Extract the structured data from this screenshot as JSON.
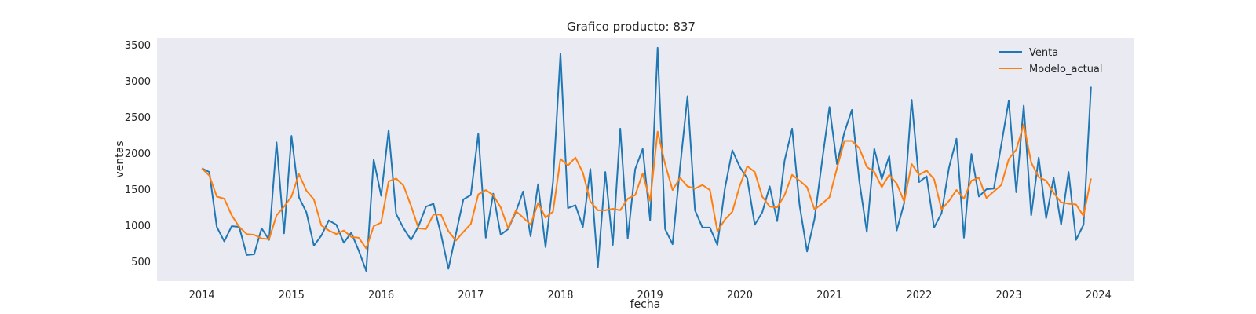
{
  "chart_data": {
    "type": "line",
    "title": "Grafico producto: 837",
    "xlabel": "fecha",
    "ylabel": "ventas",
    "xlim": [
      2013.5,
      2024.4
    ],
    "ylim": [
      230,
      3600
    ],
    "x_ticks": [
      2014,
      2015,
      2016,
      2017,
      2018,
      2019,
      2020,
      2021,
      2022,
      2023,
      2024
    ],
    "y_ticks": [
      500,
      1000,
      1500,
      2000,
      2500,
      3000,
      3500
    ],
    "grid": false,
    "legend": "top-right",
    "x_start": "2014-01",
    "x_step": "month",
    "series": [
      {
        "name": "Venta",
        "color": "#1f77b4",
        "values": [
          1790,
          1740,
          980,
          780,
          990,
          980,
          590,
          600,
          960,
          800,
          2150,
          890,
          2240,
          1390,
          1180,
          720,
          860,
          1070,
          1010,
          760,
          900,
          650,
          370,
          1910,
          1410,
          2320,
          1160,
          960,
          800,
          990,
          1260,
          1300,
          880,
          400,
          880,
          1360,
          1420,
          2270,
          830,
          1440,
          870,
          950,
          1180,
          1470,
          850,
          1570,
          700,
          1600,
          3380,
          1240,
          1280,
          980,
          1780,
          420,
          1740,
          730,
          2340,
          820,
          1780,
          2060,
          1070,
          3460,
          950,
          740,
          1800,
          2790,
          1210,
          970,
          970,
          730,
          1510,
          2040,
          1810,
          1650,
          1010,
          1180,
          1540,
          1060,
          1900,
          2340,
          1280,
          640,
          1090,
          1880,
          2640,
          1850,
          2290,
          2600,
          1610,
          910,
          2060,
          1640,
          1960,
          930,
          1310,
          2740,
          1600,
          1680,
          970,
          1170,
          1800,
          2200,
          830,
          1990,
          1400,
          1500,
          1510,
          2120,
          2730,
          1460,
          2660,
          1140,
          1940,
          1100,
          1660,
          1010,
          1740,
          800,
          1010,
          2920
        ]
      },
      {
        "name": "Modelo_actual",
        "color": "#ff7f0e",
        "values": [
          1790,
          1690,
          1400,
          1370,
          1140,
          980,
          880,
          870,
          820,
          810,
          1140,
          1260,
          1400,
          1710,
          1480,
          1360,
          1000,
          930,
          880,
          930,
          840,
          830,
          680,
          990,
          1040,
          1610,
          1650,
          1550,
          1270,
          960,
          950,
          1150,
          1150,
          920,
          790,
          910,
          1020,
          1430,
          1490,
          1420,
          1250,
          960,
          1200,
          1110,
          1010,
          1310,
          1110,
          1190,
          1920,
          1830,
          1940,
          1730,
          1330,
          1210,
          1210,
          1230,
          1210,
          1370,
          1420,
          1720,
          1340,
          2300,
          1850,
          1490,
          1660,
          1540,
          1510,
          1560,
          1490,
          920,
          1080,
          1190,
          1550,
          1820,
          1740,
          1400,
          1260,
          1250,
          1420,
          1700,
          1620,
          1530,
          1220,
          1300,
          1390,
          1790,
          2170,
          2170,
          2070,
          1810,
          1740,
          1530,
          1700,
          1580,
          1330,
          1850,
          1700,
          1760,
          1640,
          1220,
          1340,
          1490,
          1370,
          1620,
          1660,
          1380,
          1470,
          1560,
          1920,
          2050,
          2400,
          1870,
          1670,
          1620,
          1450,
          1320,
          1300,
          1290,
          1130,
          1650
        ]
      }
    ]
  }
}
